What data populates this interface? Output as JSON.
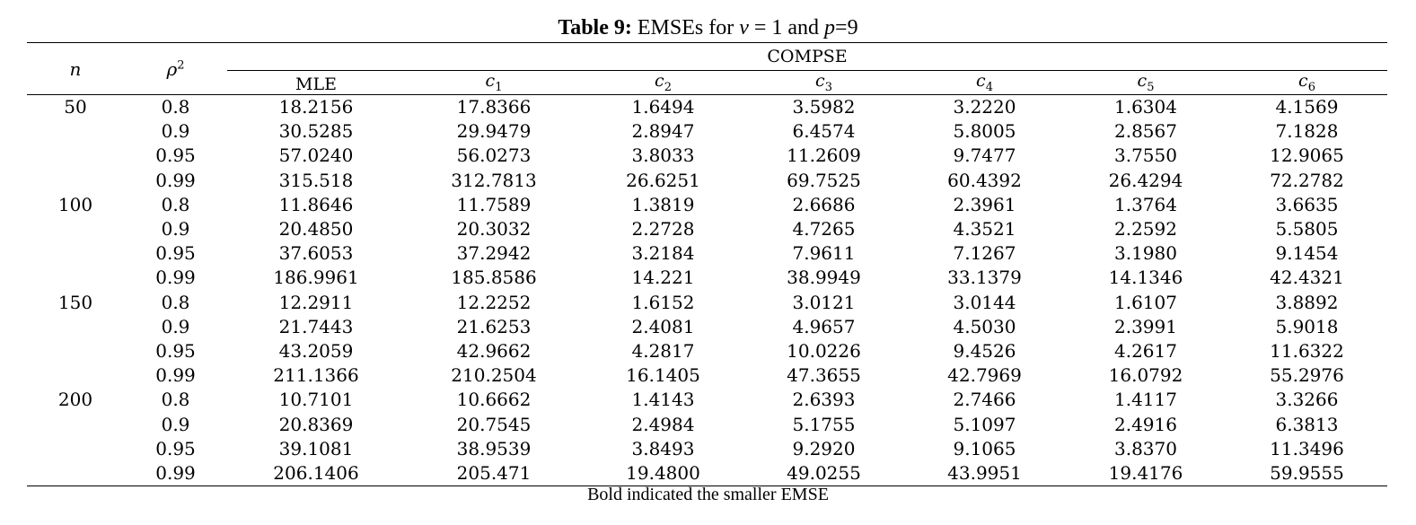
{
  "caption": {
    "label": "Table 9:",
    "text_prefix": " EMSEs for ",
    "nu_symbol": "ν",
    "nu_value": " = 1 and ",
    "p_symbol": "p",
    "p_value": "=9"
  },
  "headers": {
    "n": "n",
    "rho": "ρ",
    "rho_sup": "2",
    "group": "COMPSE",
    "columns": [
      {
        "main": "MLE",
        "sub": ""
      },
      {
        "main": "c",
        "sub": "1"
      },
      {
        "main": "c",
        "sub": "2"
      },
      {
        "main": "c",
        "sub": "3"
      },
      {
        "main": "c",
        "sub": "4"
      },
      {
        "main": "c",
        "sub": "5"
      },
      {
        "main": "c",
        "sub": "6"
      }
    ]
  },
  "rows": [
    {
      "n": "50",
      "rho2": "0.8",
      "values": [
        "18.2156",
        "17.8366",
        "1.6494",
        "3.5982",
        "3.2220",
        "1.6304",
        "4.1569"
      ]
    },
    {
      "n": "",
      "rho2": "0.9",
      "values": [
        "30.5285",
        "29.9479",
        "2.8947",
        "6.4574",
        "5.8005",
        "2.8567",
        "7.1828"
      ]
    },
    {
      "n": "",
      "rho2": "0.95",
      "values": [
        "57.0240",
        "56.0273",
        "3.8033",
        "11.2609",
        "9.7477",
        "3.7550",
        "12.9065"
      ]
    },
    {
      "n": "",
      "rho2": "0.99",
      "values": [
        "315.518",
        "312.7813",
        "26.6251",
        "69.7525",
        "60.4392",
        "26.4294",
        "72.2782"
      ]
    },
    {
      "n": "100",
      "rho2": "0.8",
      "values": [
        "11.8646",
        "11.7589",
        "1.3819",
        "2.6686",
        "2.3961",
        "1.3764",
        "3.6635"
      ]
    },
    {
      "n": "",
      "rho2": "0.9",
      "values": [
        "20.4850",
        "20.3032",
        "2.2728",
        "4.7265",
        "4.3521",
        "2.2592",
        "5.5805"
      ]
    },
    {
      "n": "",
      "rho2": "0.95",
      "values": [
        "37.6053",
        "37.2942",
        "3.2184",
        "7.9611",
        "7.1267",
        "3.1980",
        "9.1454"
      ]
    },
    {
      "n": "",
      "rho2": "0.99",
      "values": [
        "186.9961",
        "185.8586",
        "14.221",
        "38.9949",
        "33.1379",
        "14.1346",
        "42.4321"
      ]
    },
    {
      "n": "150",
      "rho2": "0.8",
      "values": [
        "12.2911",
        "12.2252",
        "1.6152",
        "3.0121",
        "3.0144",
        "1.6107",
        "3.8892"
      ]
    },
    {
      "n": "",
      "rho2": "0.9",
      "values": [
        "21.7443",
        "21.6253",
        "2.4081",
        "4.9657",
        "4.5030",
        "2.3991",
        "5.9018"
      ]
    },
    {
      "n": "",
      "rho2": "0.95",
      "values": [
        "43.2059",
        "42.9662",
        "4.2817",
        "10.0226",
        "9.4526",
        "4.2617",
        "11.6322"
      ]
    },
    {
      "n": "",
      "rho2": "0.99",
      "values": [
        "211.1366",
        "210.2504",
        "16.1405",
        "47.3655",
        "42.7969",
        "16.0792",
        "55.2976"
      ]
    },
    {
      "n": "200",
      "rho2": "0.8",
      "values": [
        "10.7101",
        "10.6662",
        "1.4143",
        "2.6393",
        "2.7466",
        "1.4117",
        "3.3266"
      ]
    },
    {
      "n": "",
      "rho2": "0.9",
      "values": [
        "20.8369",
        "20.7545",
        "2.4984",
        "5.1755",
        "5.1097",
        "2.4916",
        "6.3813"
      ]
    },
    {
      "n": "",
      "rho2": "0.95",
      "values": [
        "39.1081",
        "38.9539",
        "3.8493",
        "9.2920",
        "9.1065",
        "3.8370",
        "11.3496"
      ]
    },
    {
      "n": "",
      "rho2": "0.99",
      "values": [
        "206.1406",
        "205.471",
        "19.4800",
        "49.0255",
        "43.9951",
        "19.4176",
        "59.9555"
      ]
    }
  ],
  "bold_column_index": 5,
  "footnote": "Bold indicated the smaller EMSE"
}
